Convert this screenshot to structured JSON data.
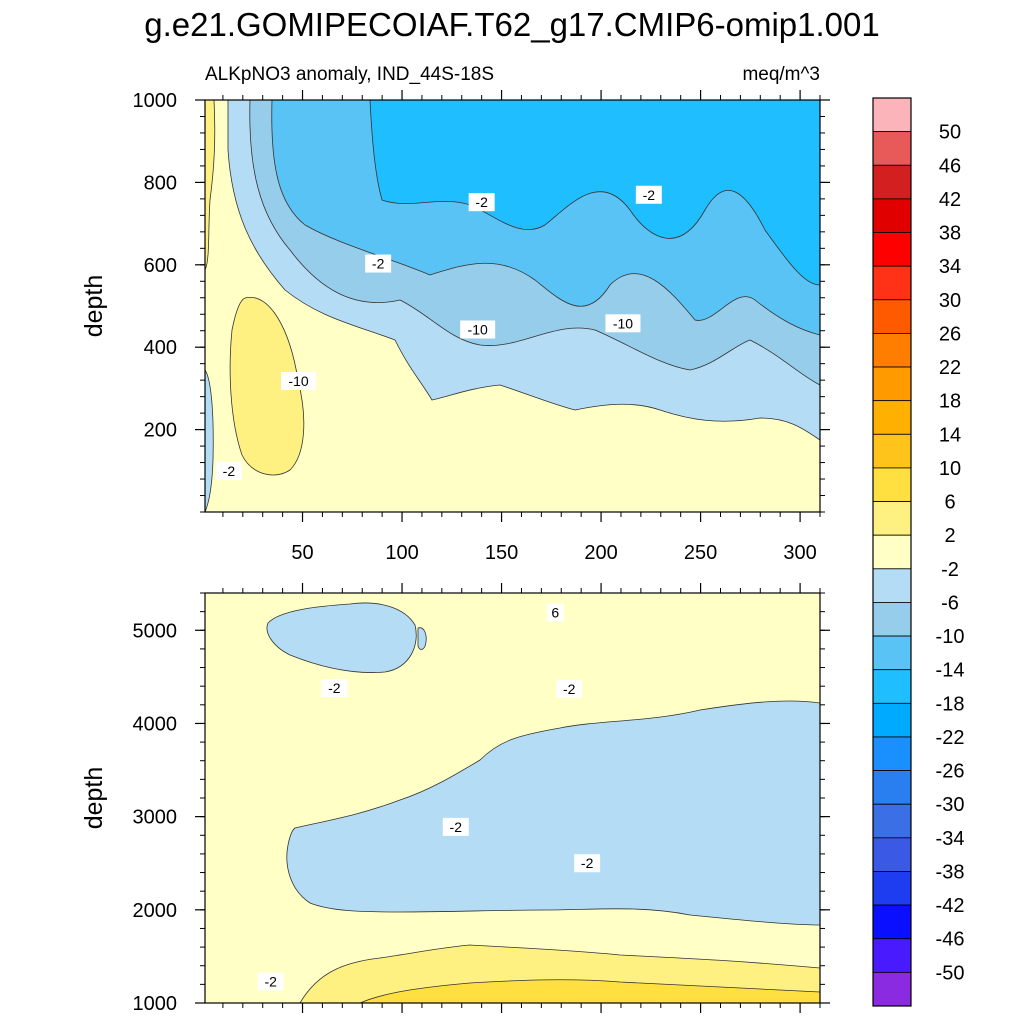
{
  "chart_data": {
    "type": "contour",
    "title": "g.e21.GOMIPECOIAF.T62_g17.CMIP6-omip1.001",
    "colorbar": {
      "labels": [
        "50",
        "46",
        "42",
        "38",
        "34",
        "30",
        "26",
        "22",
        "18",
        "14",
        "10",
        "6",
        "2",
        "-2",
        "-6",
        "-10",
        "-14",
        "-18",
        "-22",
        "-26",
        "-30",
        "-34",
        "-38",
        "-42",
        "-46",
        "-50"
      ],
      "colors": [
        "#fbb4b9",
        "#e85a5a",
        "#d31f1f",
        "#e00000",
        "#fe0000",
        "#ff3218",
        "#ff5a00",
        "#ff7e00",
        "#ff9a00",
        "#ffb000",
        "#ffc41c",
        "#ffe040",
        "#fff082",
        "#ffffc6",
        "#b4dcf5",
        "#96cdeb",
        "#5ac3f5",
        "#1ebeff",
        "#00aaff",
        "#1a90ff",
        "#2a7ff0",
        "#3a6fe6",
        "#3a5ae6",
        "#1e3cf0",
        "#0a10ff",
        "#4a1aff",
        "#8a2be2"
      ]
    },
    "panels": [
      {
        "name": "upper",
        "subtitle_left": "ALKpNO3 anomaly, IND_44S-18S",
        "subtitle_right": "meq/m^3",
        "ylabel": "depth",
        "xlim": [
          1,
          310
        ],
        "ylim": [
          1000,
          0
        ],
        "xticks": [
          "50",
          "100",
          "150",
          "200",
          "250",
          "300"
        ],
        "xtick_values": [
          50,
          100,
          150,
          200,
          250,
          300
        ],
        "yticks": [
          "200",
          "400",
          "600",
          "800",
          "1000"
        ],
        "ytick_values": [
          200,
          400,
          600,
          800,
          1000
        ],
        "contour_labels": [
          {
            "text": "-2",
            "x": 13,
            "y": 100
          },
          {
            "text": "-10",
            "x": 48,
            "y": 318
          },
          {
            "text": "-10",
            "x": 138,
            "y": 443
          },
          {
            "text": "-10",
            "x": 211,
            "y": 458
          },
          {
            "text": "-2",
            "x": 88,
            "y": 603
          },
          {
            "text": "-2",
            "x": 140,
            "y": 752
          },
          {
            "text": "-2",
            "x": 224,
            "y": 770
          }
        ]
      },
      {
        "name": "lower",
        "ylabel": "depth",
        "xlim": [
          1,
          310
        ],
        "ylim": [
          5400,
          1000
        ],
        "yticks": [
          "1000",
          "2000",
          "3000",
          "4000",
          "5000"
        ],
        "ytick_values": [
          1000,
          2000,
          3000,
          4000,
          5000
        ],
        "contour_labels": [
          {
            "text": "-2",
            "x": 34,
            "y": 1230
          },
          {
            "text": "-2",
            "x": 193,
            "y": 2500
          },
          {
            "text": "-2",
            "x": 127,
            "y": 2890
          },
          {
            "text": "-2",
            "x": 66,
            "y": 4380
          },
          {
            "text": "-2",
            "x": 184,
            "y": 4370
          },
          {
            "text": "6",
            "x": 177,
            "y": 5190
          }
        ]
      }
    ]
  }
}
